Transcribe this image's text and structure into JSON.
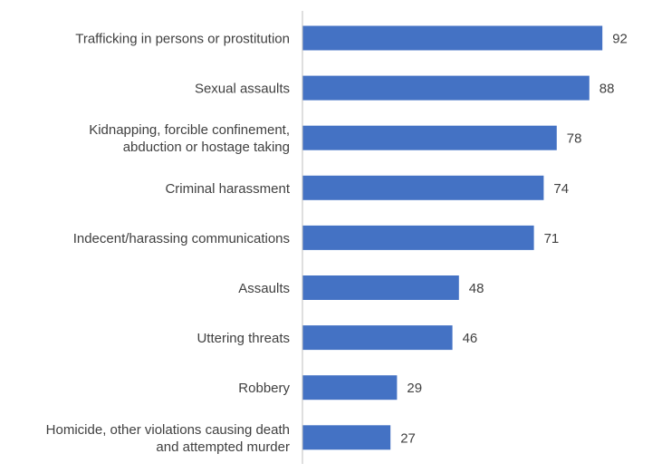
{
  "chart_data": {
    "type": "bar",
    "orientation": "horizontal",
    "title": "",
    "xlabel": "",
    "ylabel": "",
    "categories": [
      [
        "Trafficking in persons or prostitution"
      ],
      [
        "Sexual assaults"
      ],
      [
        "Kidnapping, forcible confinement,",
        "abduction or hostage taking"
      ],
      [
        "Criminal harassment"
      ],
      [
        "Indecent/harassing communications"
      ],
      [
        "Assaults"
      ],
      [
        "Uttering threats"
      ],
      [
        "Robbery"
      ],
      [
        "Homicide, other violations causing death",
        "and attempted murder"
      ]
    ],
    "values": [
      92,
      88,
      78,
      74,
      71,
      48,
      46,
      29,
      27
    ],
    "xlim": [
      0,
      100
    ],
    "grid": false,
    "legend": "none",
    "bar_color": "#4472C4",
    "axis_color": "#BFBFBF",
    "text_color": "#404040"
  }
}
